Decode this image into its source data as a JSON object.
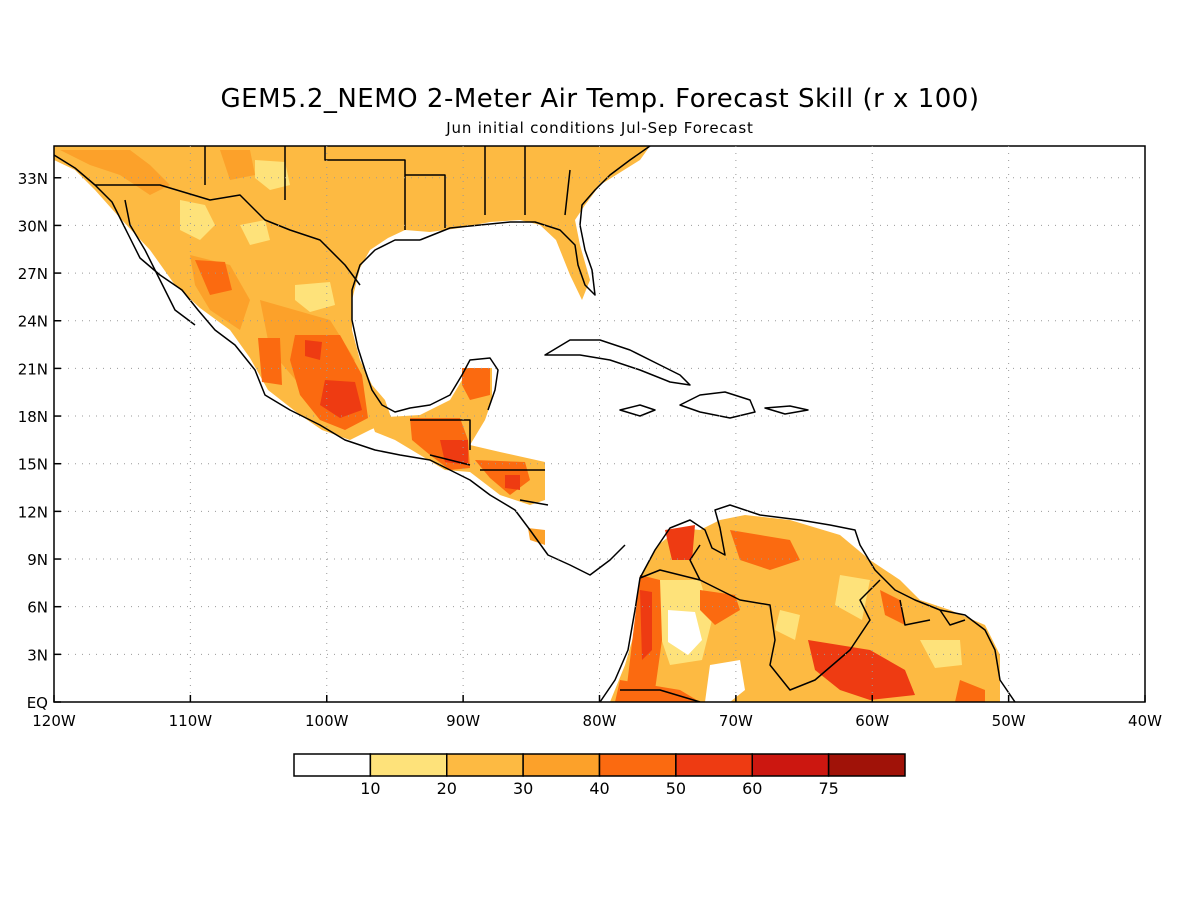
{
  "title": "GEM5.2_NEMO 2-Meter Air Temp. Forecast Skill (r x 100)",
  "subtitle": "Jun initial conditions   Jul-Sep Forecast",
  "map": {
    "lon_range": [
      -120,
      -40
    ],
    "lat_range": [
      0,
      35
    ],
    "grid": "dotted",
    "lon_ticks": [
      {
        "lon": -120,
        "label": "120W"
      },
      {
        "lon": -110,
        "label": "110W"
      },
      {
        "lon": -100,
        "label": "100W"
      },
      {
        "lon": -90,
        "label": "90W"
      },
      {
        "lon": -80,
        "label": "80W"
      },
      {
        "lon": -70,
        "label": "70W"
      },
      {
        "lon": -60,
        "label": "60W"
      },
      {
        "lon": -50,
        "label": "50W"
      },
      {
        "lon": -40,
        "label": "40W"
      }
    ],
    "lat_ticks": [
      {
        "lat": 0,
        "label": "EQ"
      },
      {
        "lat": 3,
        "label": "3N"
      },
      {
        "lat": 6,
        "label": "6N"
      },
      {
        "lat": 9,
        "label": "9N"
      },
      {
        "lat": 12,
        "label": "12N"
      },
      {
        "lat": 15,
        "label": "15N"
      },
      {
        "lat": 18,
        "label": "18N"
      },
      {
        "lat": 21,
        "label": "21N"
      },
      {
        "lat": 24,
        "label": "24N"
      },
      {
        "lat": 27,
        "label": "27N"
      },
      {
        "lat": 30,
        "label": "30N"
      },
      {
        "lat": 33,
        "label": "33N"
      }
    ]
  },
  "colorbar": {
    "colors": [
      "#ffffff",
      "#fee27a",
      "#fdba42",
      "#fca12a",
      "#fb6a10",
      "#ee3b12",
      "#cc1710",
      "#a01208"
    ],
    "labels": [
      "10",
      "20",
      "30",
      "40",
      "50",
      "60",
      "75"
    ]
  }
}
